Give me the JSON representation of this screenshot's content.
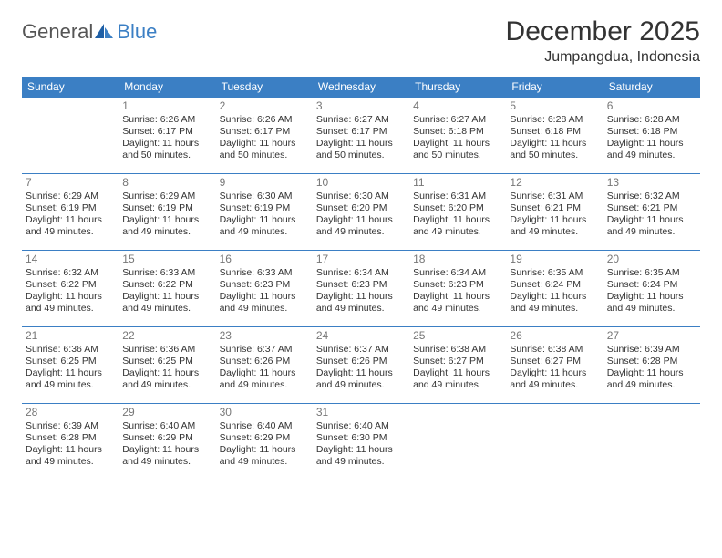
{
  "logo": {
    "general": "General",
    "blue": "Blue"
  },
  "title": "December 2025",
  "location": "Jumpangdua, Indonesia",
  "colors": {
    "header_bg": "#3b7fc4",
    "header_fg": "#ffffff",
    "border": "#3b7fc4",
    "text": "#333333",
    "daynum": "#777777",
    "background": "#ffffff"
  },
  "dayHeaders": [
    "Sunday",
    "Monday",
    "Tuesday",
    "Wednesday",
    "Thursday",
    "Friday",
    "Saturday"
  ],
  "weeks": [
    [
      null,
      {
        "n": "1",
        "sr": "Sunrise: 6:26 AM",
        "ss": "Sunset: 6:17 PM",
        "dl": "Daylight: 11 hours and 50 minutes."
      },
      {
        "n": "2",
        "sr": "Sunrise: 6:26 AM",
        "ss": "Sunset: 6:17 PM",
        "dl": "Daylight: 11 hours and 50 minutes."
      },
      {
        "n": "3",
        "sr": "Sunrise: 6:27 AM",
        "ss": "Sunset: 6:17 PM",
        "dl": "Daylight: 11 hours and 50 minutes."
      },
      {
        "n": "4",
        "sr": "Sunrise: 6:27 AM",
        "ss": "Sunset: 6:18 PM",
        "dl": "Daylight: 11 hours and 50 minutes."
      },
      {
        "n": "5",
        "sr": "Sunrise: 6:28 AM",
        "ss": "Sunset: 6:18 PM",
        "dl": "Daylight: 11 hours and 50 minutes."
      },
      {
        "n": "6",
        "sr": "Sunrise: 6:28 AM",
        "ss": "Sunset: 6:18 PM",
        "dl": "Daylight: 11 hours and 49 minutes."
      }
    ],
    [
      {
        "n": "7",
        "sr": "Sunrise: 6:29 AM",
        "ss": "Sunset: 6:19 PM",
        "dl": "Daylight: 11 hours and 49 minutes."
      },
      {
        "n": "8",
        "sr": "Sunrise: 6:29 AM",
        "ss": "Sunset: 6:19 PM",
        "dl": "Daylight: 11 hours and 49 minutes."
      },
      {
        "n": "9",
        "sr": "Sunrise: 6:30 AM",
        "ss": "Sunset: 6:19 PM",
        "dl": "Daylight: 11 hours and 49 minutes."
      },
      {
        "n": "10",
        "sr": "Sunrise: 6:30 AM",
        "ss": "Sunset: 6:20 PM",
        "dl": "Daylight: 11 hours and 49 minutes."
      },
      {
        "n": "11",
        "sr": "Sunrise: 6:31 AM",
        "ss": "Sunset: 6:20 PM",
        "dl": "Daylight: 11 hours and 49 minutes."
      },
      {
        "n": "12",
        "sr": "Sunrise: 6:31 AM",
        "ss": "Sunset: 6:21 PM",
        "dl": "Daylight: 11 hours and 49 minutes."
      },
      {
        "n": "13",
        "sr": "Sunrise: 6:32 AM",
        "ss": "Sunset: 6:21 PM",
        "dl": "Daylight: 11 hours and 49 minutes."
      }
    ],
    [
      {
        "n": "14",
        "sr": "Sunrise: 6:32 AM",
        "ss": "Sunset: 6:22 PM",
        "dl": "Daylight: 11 hours and 49 minutes."
      },
      {
        "n": "15",
        "sr": "Sunrise: 6:33 AM",
        "ss": "Sunset: 6:22 PM",
        "dl": "Daylight: 11 hours and 49 minutes."
      },
      {
        "n": "16",
        "sr": "Sunrise: 6:33 AM",
        "ss": "Sunset: 6:23 PM",
        "dl": "Daylight: 11 hours and 49 minutes."
      },
      {
        "n": "17",
        "sr": "Sunrise: 6:34 AM",
        "ss": "Sunset: 6:23 PM",
        "dl": "Daylight: 11 hours and 49 minutes."
      },
      {
        "n": "18",
        "sr": "Sunrise: 6:34 AM",
        "ss": "Sunset: 6:23 PM",
        "dl": "Daylight: 11 hours and 49 minutes."
      },
      {
        "n": "19",
        "sr": "Sunrise: 6:35 AM",
        "ss": "Sunset: 6:24 PM",
        "dl": "Daylight: 11 hours and 49 minutes."
      },
      {
        "n": "20",
        "sr": "Sunrise: 6:35 AM",
        "ss": "Sunset: 6:24 PM",
        "dl": "Daylight: 11 hours and 49 minutes."
      }
    ],
    [
      {
        "n": "21",
        "sr": "Sunrise: 6:36 AM",
        "ss": "Sunset: 6:25 PM",
        "dl": "Daylight: 11 hours and 49 minutes."
      },
      {
        "n": "22",
        "sr": "Sunrise: 6:36 AM",
        "ss": "Sunset: 6:25 PM",
        "dl": "Daylight: 11 hours and 49 minutes."
      },
      {
        "n": "23",
        "sr": "Sunrise: 6:37 AM",
        "ss": "Sunset: 6:26 PM",
        "dl": "Daylight: 11 hours and 49 minutes."
      },
      {
        "n": "24",
        "sr": "Sunrise: 6:37 AM",
        "ss": "Sunset: 6:26 PM",
        "dl": "Daylight: 11 hours and 49 minutes."
      },
      {
        "n": "25",
        "sr": "Sunrise: 6:38 AM",
        "ss": "Sunset: 6:27 PM",
        "dl": "Daylight: 11 hours and 49 minutes."
      },
      {
        "n": "26",
        "sr": "Sunrise: 6:38 AM",
        "ss": "Sunset: 6:27 PM",
        "dl": "Daylight: 11 hours and 49 minutes."
      },
      {
        "n": "27",
        "sr": "Sunrise: 6:39 AM",
        "ss": "Sunset: 6:28 PM",
        "dl": "Daylight: 11 hours and 49 minutes."
      }
    ],
    [
      {
        "n": "28",
        "sr": "Sunrise: 6:39 AM",
        "ss": "Sunset: 6:28 PM",
        "dl": "Daylight: 11 hours and 49 minutes."
      },
      {
        "n": "29",
        "sr": "Sunrise: 6:40 AM",
        "ss": "Sunset: 6:29 PM",
        "dl": "Daylight: 11 hours and 49 minutes."
      },
      {
        "n": "30",
        "sr": "Sunrise: 6:40 AM",
        "ss": "Sunset: 6:29 PM",
        "dl": "Daylight: 11 hours and 49 minutes."
      },
      {
        "n": "31",
        "sr": "Sunrise: 6:40 AM",
        "ss": "Sunset: 6:30 PM",
        "dl": "Daylight: 11 hours and 49 minutes."
      },
      null,
      null,
      null
    ]
  ]
}
